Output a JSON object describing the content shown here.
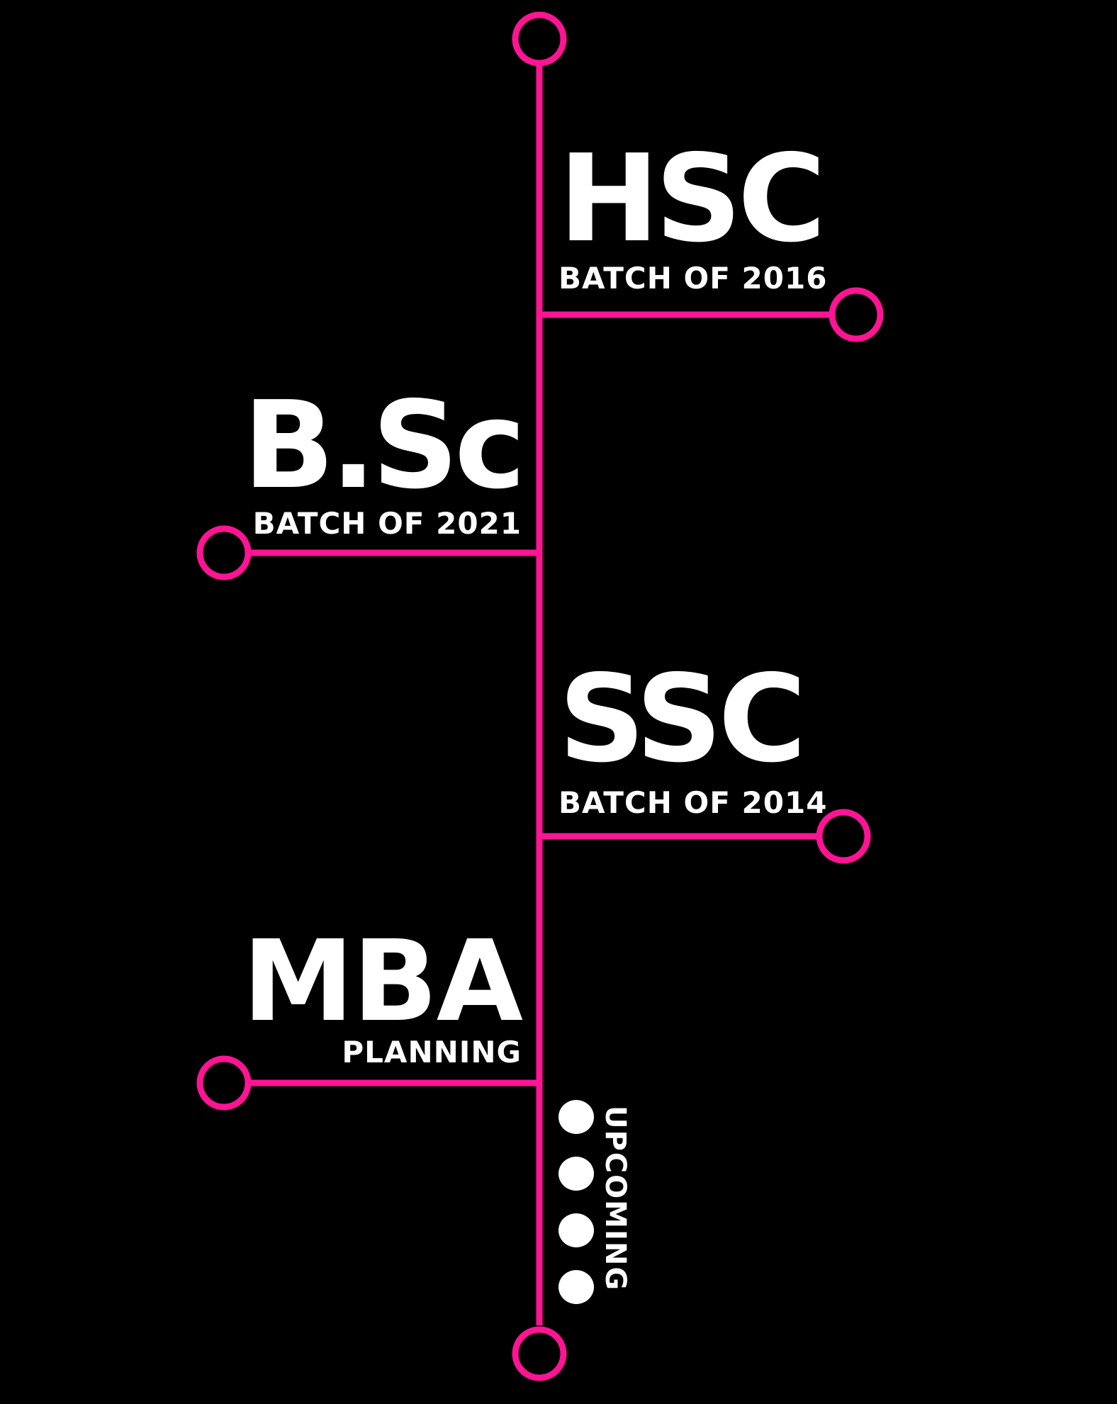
{
  "colors": {
    "background": "#000000",
    "line": "#ff1493",
    "text": "#ffffff"
  },
  "milestones": [
    {
      "title": "HSC",
      "subtitle": "BATCH OF 2016",
      "side": "right"
    },
    {
      "title": "B.Sc",
      "subtitle": "BATCH OF 2021",
      "side": "left"
    },
    {
      "title": "SSC",
      "subtitle": "BATCH OF 2014",
      "side": "right"
    },
    {
      "title": "MBA",
      "subtitle": "PLANNING",
      "side": "left"
    }
  ],
  "upcoming": {
    "label": "UPCOMING",
    "dots": 4
  }
}
